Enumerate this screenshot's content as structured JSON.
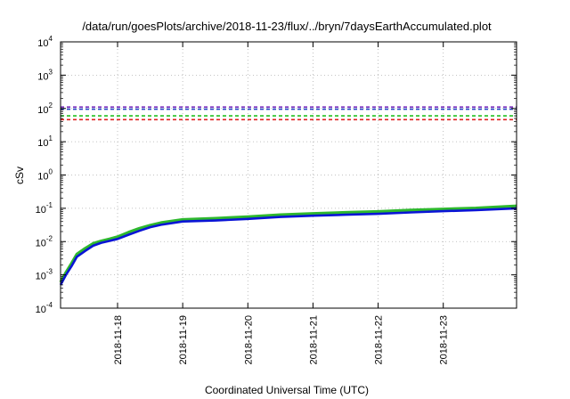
{
  "chart_data": {
    "type": "line",
    "title": "/data/run/goesPlots/archive/2018-11-23/flux/../bryn/7daysEarthAccumulated.plot",
    "xlabel": "Coordinated Universal Time (UTC)",
    "ylabel": "cSv",
    "y_scale": "log",
    "ylim": [
      0.0001,
      10000
    ],
    "y_ticks": [
      {
        "mantissa": "10",
        "exp": "-4",
        "value": 0.0001
      },
      {
        "mantissa": "10",
        "exp": "-3",
        "value": 0.001
      },
      {
        "mantissa": "10",
        "exp": "-2",
        "value": 0.01
      },
      {
        "mantissa": "10",
        "exp": "-1",
        "value": 0.1
      },
      {
        "mantissa": "10",
        "exp": "0",
        "value": 1
      },
      {
        "mantissa": "10",
        "exp": "1",
        "value": 10
      },
      {
        "mantissa": "10",
        "exp": "2",
        "value": 100
      },
      {
        "mantissa": "10",
        "exp": "3",
        "value": 1000
      },
      {
        "mantissa": "10",
        "exp": "4",
        "value": 10000
      }
    ],
    "xlim": [
      "2018-11-17T03:00",
      "2018-11-24T03:00"
    ],
    "x_ticks": [
      "2018-11-18",
      "2018-11-19",
      "2018-11-20",
      "2018-11-21",
      "2018-11-22",
      "2018-11-23"
    ],
    "grid": true,
    "reference_lines": [
      {
        "value": 110,
        "color": "#7b2fbe",
        "style": "dashed"
      },
      {
        "value": 95,
        "color": "#1f3fbf",
        "style": "dashed"
      },
      {
        "value": 60,
        "color": "#22c022",
        "style": "dashed"
      },
      {
        "value": 46,
        "color": "#e02020",
        "style": "dashed"
      }
    ],
    "series": [
      {
        "color": "#2eb82e",
        "x": [
          "2018-11-17T03:00",
          "2018-11-17T05:00",
          "2018-11-17T07:00",
          "2018-11-17T09:00",
          "2018-11-17T12:00",
          "2018-11-17T15:00",
          "2018-11-17T18:00",
          "2018-11-17T21:00",
          "2018-11-18T00:00",
          "2018-11-18T04:00",
          "2018-11-18T08:00",
          "2018-11-18T12:00",
          "2018-11-18T16:00",
          "2018-11-19T00:00",
          "2018-11-19T12:00",
          "2018-11-20T00:00",
          "2018-11-20T12:00",
          "2018-11-21T00:00",
          "2018-11-21T12:00",
          "2018-11-22T00:00",
          "2018-11-22T12:00",
          "2018-11-23T00:00",
          "2018-11-23T12:00",
          "2018-11-24T03:00"
        ],
        "y": [
          0.0006,
          0.0012,
          0.0022,
          0.0042,
          0.0062,
          0.0088,
          0.0105,
          0.012,
          0.014,
          0.019,
          0.025,
          0.031,
          0.037,
          0.046,
          0.05,
          0.056,
          0.064,
          0.07,
          0.075,
          0.08,
          0.088,
          0.095,
          0.102,
          0.118
        ]
      },
      {
        "color": "#0a14d6",
        "x": [
          "2018-11-17T03:00",
          "2018-11-17T05:00",
          "2018-11-17T07:00",
          "2018-11-17T09:00",
          "2018-11-17T12:00",
          "2018-11-17T15:00",
          "2018-11-17T18:00",
          "2018-11-17T21:00",
          "2018-11-18T00:00",
          "2018-11-18T04:00",
          "2018-11-18T08:00",
          "2018-11-18T12:00",
          "2018-11-18T16:00",
          "2018-11-19T00:00",
          "2018-11-19T12:00",
          "2018-11-20T00:00",
          "2018-11-20T12:00",
          "2018-11-21T00:00",
          "2018-11-21T12:00",
          "2018-11-22T00:00",
          "2018-11-22T12:00",
          "2018-11-23T00:00",
          "2018-11-23T12:00",
          "2018-11-24T03:00"
        ],
        "y": [
          0.0005,
          0.001,
          0.0018,
          0.0035,
          0.0052,
          0.0075,
          0.0092,
          0.0105,
          0.012,
          0.016,
          0.021,
          0.027,
          0.032,
          0.04,
          0.043,
          0.048,
          0.055,
          0.06,
          0.064,
          0.068,
          0.075,
          0.082,
          0.088,
          0.1
        ]
      }
    ]
  }
}
